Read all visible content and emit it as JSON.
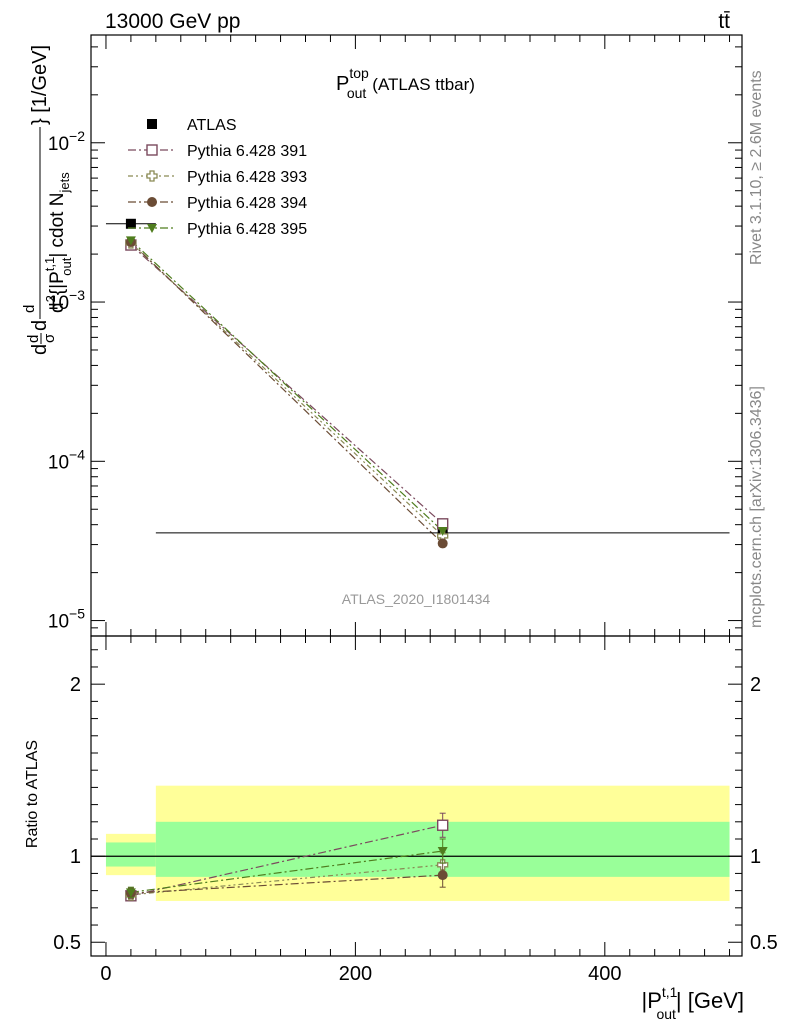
{
  "header": {
    "collision": "13000 GeV pp",
    "process": "tt̄"
  },
  "side_labels": {
    "rivet": "Rivet 3.1.10, ≥ 2.6M events",
    "mcplots": "mcplots.cern.ch [arXiv:1306.3436]"
  },
  "chart_data": [
    {
      "type": "line",
      "panel": "main",
      "title": "P_out^top (ATLAS ttbar)",
      "title_main": "P",
      "title_sup": "top",
      "title_sub": "out",
      "title_rest": "(ATLAS ttbar)",
      "watermark": "ATLAS_2020_I1801434",
      "ylabel": "dσ/dd²{|P_out^t,1| cdot N_jets} [1/GeV]",
      "ylabel_parts": {
        "top_frac_num": "d",
        "top_frac_den": "σ",
        "lead": "d",
        "frac2_num": "d",
        "frac2_num_sup": "",
        "frac2_den_main": "d",
        "frac2_den_sup": "2",
        "frac2_den_rest": "{|P",
        "frac2_den_subsup_sup": "t,1",
        "frac2_den_subsup_sub": "out",
        "frac2_den_tail": "| cdot N",
        "frac2_den_tail_sub": "jets",
        "units": "} [1/GeV]"
      },
      "yscale": "log",
      "ylim": [
        8e-06,
        0.0475
      ],
      "xlim": [
        -12,
        510
      ],
      "yticks": [
        {
          "value": 1e-05,
          "base": "10",
          "exp": "−5"
        },
        {
          "value": 0.0001,
          "base": "10",
          "exp": "−4"
        },
        {
          "value": 0.001,
          "base": "10",
          "exp": "−3"
        },
        {
          "value": 0.01,
          "base": "10",
          "exp": "−2"
        }
      ],
      "x": [
        20,
        270
      ],
      "legend_position": "top-left",
      "series": [
        {
          "name": "ATLAS",
          "values": [
            0.0031,
            3.55e-05
          ],
          "marker": "square-filled",
          "color": "#000000",
          "line": "none",
          "xerr": [
            [
              0,
              40
            ],
            [
              40,
              500
            ]
          ]
        },
        {
          "name": "Pythia 6.428 391",
          "values": [
            0.00228,
            4.05e-05
          ],
          "marker": "square-open",
          "color": "#7b4a5e",
          "line": "dashdot"
        },
        {
          "name": "Pythia 6.428 393",
          "values": [
            0.00235,
            3.4e-05
          ],
          "marker": "cross-open",
          "color": "#8a8a55",
          "line": "dashdotdot"
        },
        {
          "name": "Pythia 6.428 394",
          "values": [
            0.00238,
            3.05e-05
          ],
          "marker": "circle-filled",
          "color": "#6b4c35",
          "line": "dashdot"
        },
        {
          "name": "Pythia 6.428 395",
          "values": [
            0.00244,
            3.65e-05
          ],
          "marker": "triangle-down-filled",
          "color": "#4f7d1e",
          "line": "dashdot"
        }
      ]
    },
    {
      "type": "line",
      "panel": "ratio",
      "ylabel": "Ratio to ATLAS",
      "xlabel": "|P_out^t,1| [GeV]",
      "xlabel_parts": {
        "pre": "|P",
        "sup": "t,1",
        "sub": "out",
        "post": "| [GeV]"
      },
      "yscale": "linear",
      "ylim": [
        0.42,
        2.28
      ],
      "xlim": [
        -12,
        510
      ],
      "yticks": [
        0.5,
        1,
        2
      ],
      "ytick_labels": [
        "0.5",
        "1",
        "2"
      ],
      "xticks": [
        0,
        200,
        400
      ],
      "xtick_labels": [
        "0",
        "200",
        "400"
      ],
      "x": [
        20,
        270
      ],
      "reference_line": 1,
      "bands": [
        {
          "x_range": [
            0,
            40
          ],
          "inner": [
            0.94,
            1.08
          ],
          "outer": [
            0.89,
            1.13
          ]
        },
        {
          "x_range": [
            40,
            500
          ],
          "inner": [
            0.88,
            1.2
          ],
          "outer": [
            0.74,
            1.41
          ]
        }
      ],
      "band_colors": {
        "inner": "#99ff99",
        "outer": "#ffff99"
      },
      "series": [
        {
          "name": "Pythia 6.428 391",
          "values": [
            0.77,
            1.18
          ],
          "errors": [
            0.03,
            0.07
          ]
        },
        {
          "name": "Pythia 6.428 393",
          "values": [
            0.775,
            0.95
          ],
          "errors": [
            0.03,
            0.07
          ]
        },
        {
          "name": "Pythia 6.428 394",
          "values": [
            0.785,
            0.89
          ],
          "errors": [
            0.03,
            0.07
          ]
        },
        {
          "name": "Pythia 6.428 395",
          "values": [
            0.79,
            1.03
          ],
          "errors": [
            0.03,
            0.07
          ]
        }
      ]
    }
  ]
}
